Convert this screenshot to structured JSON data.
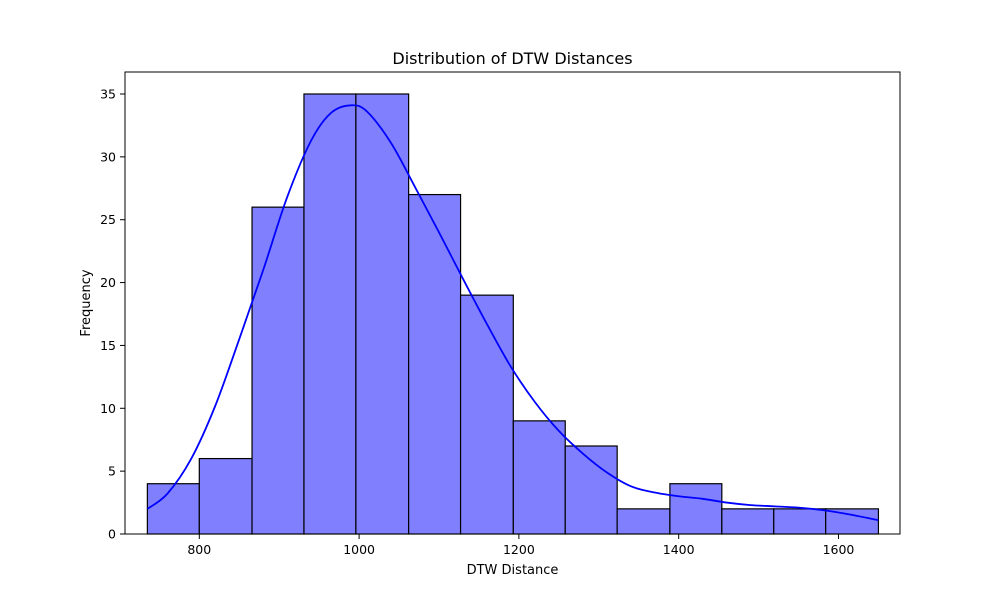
{
  "chart_data": {
    "type": "histogram",
    "title": "Distribution of DTW Distances",
    "xlabel": "DTW Distance",
    "ylabel": "Frequency",
    "xlim": [
      707,
      1677
    ],
    "ylim": [
      0,
      36.75
    ],
    "xticks": [
      800,
      1000,
      1200,
      1400,
      1600
    ],
    "yticks": [
      0,
      5,
      10,
      15,
      20,
      25,
      30,
      35
    ],
    "grid": false,
    "bar_color": "#8080ff",
    "bar_edge_color": "#000000",
    "kde_color": "#0000ff",
    "bins": [
      {
        "start": 735,
        "end": 800,
        "count": 4
      },
      {
        "start": 800,
        "end": 866,
        "count": 6
      },
      {
        "start": 866,
        "end": 931,
        "count": 26
      },
      {
        "start": 931,
        "end": 996,
        "count": 35
      },
      {
        "start": 996,
        "end": 1062,
        "count": 35
      },
      {
        "start": 1062,
        "end": 1127,
        "count": 27
      },
      {
        "start": 1127,
        "end": 1193,
        "count": 19
      },
      {
        "start": 1193,
        "end": 1258,
        "count": 9
      },
      {
        "start": 1258,
        "end": 1323,
        "count": 7
      },
      {
        "start": 1323,
        "end": 1389,
        "count": 2
      },
      {
        "start": 1389,
        "end": 1454,
        "count": 4
      },
      {
        "start": 1454,
        "end": 1519,
        "count": 2
      },
      {
        "start": 1519,
        "end": 1584,
        "count": 2
      },
      {
        "start": 1584,
        "end": 1650,
        "count": 2
      }
    ],
    "kde": {
      "x": [
        735,
        760,
        790,
        820,
        850,
        880,
        910,
        940,
        965,
        990,
        1010,
        1040,
        1070,
        1100,
        1130,
        1160,
        1190,
        1220,
        1250,
        1280,
        1310,
        1340,
        1370,
        1400,
        1430,
        1460,
        1490,
        1520,
        1550,
        1580,
        1610,
        1650
      ],
      "y": [
        2.0,
        3.2,
        6.0,
        10.2,
        15.5,
        21.0,
        26.8,
        31.3,
        33.5,
        34.1,
        33.6,
        31.1,
        27.6,
        24.0,
        20.3,
        16.7,
        13.3,
        10.5,
        8.2,
        6.4,
        4.9,
        3.8,
        3.3,
        3.0,
        2.8,
        2.5,
        2.3,
        2.2,
        2.1,
        1.9,
        1.6,
        1.1
      ]
    }
  }
}
